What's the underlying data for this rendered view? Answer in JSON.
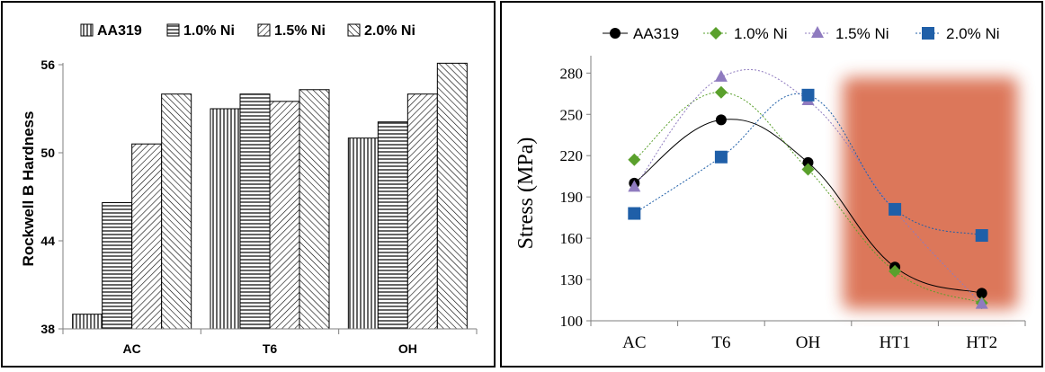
{
  "chart_data": [
    {
      "type": "bar",
      "title": "",
      "xlabel": "",
      "ylabel": "Rockwell B Hardness",
      "ylim": [
        38,
        56
      ],
      "yticks": [
        "38",
        "44",
        "50",
        "56"
      ],
      "grid": false,
      "legend": "top",
      "categories": [
        "AC",
        "T6",
        "OH"
      ],
      "series": [
        {
          "name": "AA319",
          "pattern": "vertical",
          "values": [
            39.0,
            53.0,
            51.0
          ]
        },
        {
          "name": "1.0% Ni",
          "pattern": "horizontal",
          "values": [
            46.6,
            54.0,
            52.1
          ]
        },
        {
          "name": "1.5% Ni",
          "pattern": "back-diagonal",
          "values": [
            50.6,
            53.5,
            54.0
          ]
        },
        {
          "name": "2.0% Ni",
          "pattern": "diagonal",
          "values": [
            54.0,
            54.3,
            56.1
          ]
        }
      ]
    },
    {
      "type": "line",
      "title": "",
      "xlabel": "",
      "ylabel": "Stress (MPa)",
      "ylim": [
        100,
        290
      ],
      "yticks": [
        "100",
        "130",
        "160",
        "190",
        "220",
        "250",
        "280"
      ],
      "grid": false,
      "legend": "top",
      "categories": [
        "AC",
        "T6",
        "OH",
        "HT1",
        "HT2"
      ],
      "highlight": {
        "from": "HT1",
        "to": "HT2",
        "color": "#d9694a"
      },
      "series": [
        {
          "name": "AA319",
          "color": "#000000",
          "marker": "circle",
          "values": [
            200,
            246,
            215,
            139,
            120
          ]
        },
        {
          "name": "1.0% Ni",
          "color": "#5aa02c",
          "marker": "diamond",
          "values": [
            217,
            266,
            210,
            136,
            113
          ]
        },
        {
          "name": "1.5% Ni",
          "color": "#8f7bbf",
          "marker": "triangle",
          "values": [
            197,
            277,
            260,
            180,
            112
          ]
        },
        {
          "name": "2.0% Ni",
          "color": "#1f5fa8",
          "marker": "square",
          "values": [
            178,
            219,
            264,
            181,
            162
          ]
        }
      ]
    }
  ]
}
